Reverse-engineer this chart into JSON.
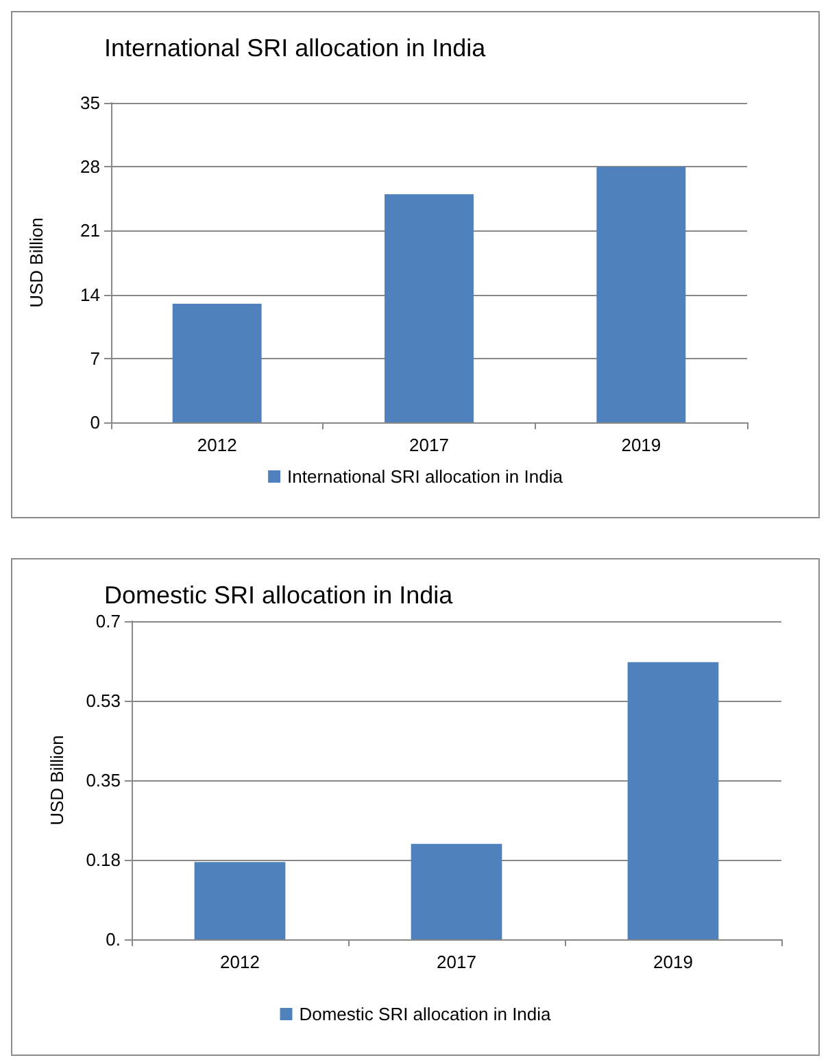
{
  "chart_data": [
    {
      "type": "bar",
      "title": "International SRI allocation in India",
      "ylabel": "USD Billion",
      "categories": [
        "2012",
        "2017",
        "2019"
      ],
      "series": [
        {
          "name": "International SRI allocation in India",
          "color": "#4f81bd",
          "values": [
            13,
            25,
            28
          ]
        }
      ],
      "ylim": [
        0,
        35
      ],
      "yticks": [
        0,
        7,
        14,
        21,
        28,
        35
      ],
      "grid": "y",
      "legend": "bottom"
    },
    {
      "type": "bar",
      "title": "Domestic SRI allocation in India",
      "ylabel": "USD Billion",
      "categories": [
        "2012",
        "2017",
        "2019"
      ],
      "series": [
        {
          "name": "Domestic SRI allocation in India",
          "color": "#4f81bd",
          "values": [
            0.17,
            0.21,
            0.61
          ]
        }
      ],
      "ylim": [
        0,
        0.7
      ],
      "yticks": [
        {
          "value": 0,
          "label": "0."
        },
        {
          "value": 0.175,
          "label": "0.18"
        },
        {
          "value": 0.35,
          "label": "0.35"
        },
        {
          "value": 0.525,
          "label": "0.53"
        },
        {
          "value": 0.7,
          "label": "0.7"
        }
      ],
      "grid": "y",
      "legend": "bottom"
    }
  ]
}
